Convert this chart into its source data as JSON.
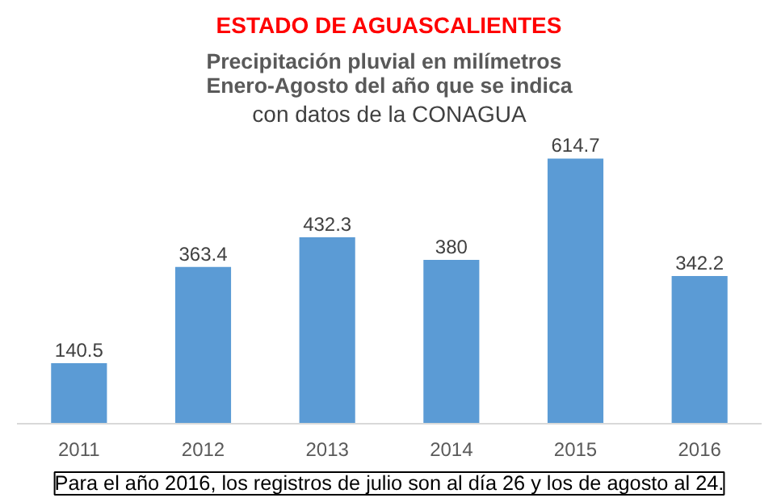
{
  "chart_data": {
    "type": "bar",
    "title": "ESTADO DE AGUASCALIENTES",
    "subtitle": "Precipitación pluvial en milímetros\nEnero-Agosto del año que se indica",
    "categories": [
      "2011",
      "2012",
      "2013",
      "2014",
      "2015",
      "2016"
    ],
    "values": [
      140.5,
      363.4,
      432.3,
      380,
      614.7,
      342.2
    ],
    "color": "#5b9bd5",
    "data_labels": true,
    "grid": false,
    "annotations": [
      "con datos de la CONAGUA",
      "Para el año 2016, los registros de julio son al día 26 y los de agosto al 24."
    ]
  }
}
